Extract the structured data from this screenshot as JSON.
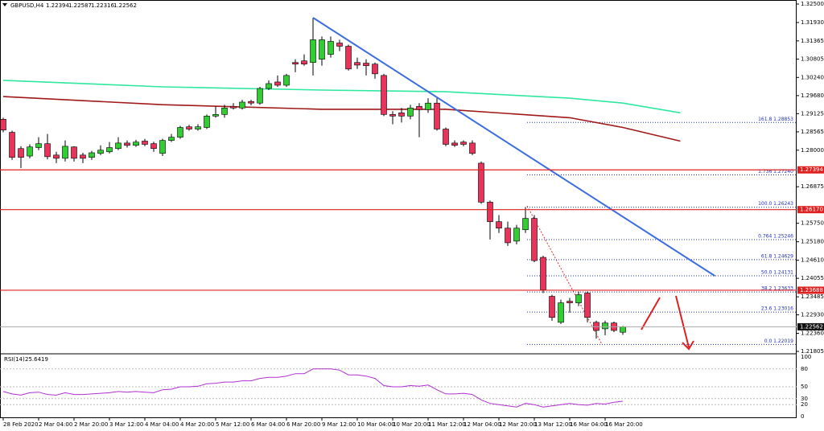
{
  "chart_data": {
    "type": "candlestick",
    "symbol": "GBPUSD,H4",
    "bull_color": "#32cd32",
    "bear_color": "#e8345a",
    "candles": [
      [
        1.2895,
        1.29,
        1.2855,
        1.2862
      ],
      [
        1.2855,
        1.286,
        1.277,
        1.2778
      ],
      [
        1.2805,
        1.2812,
        1.2745,
        1.2778
      ],
      [
        1.2782,
        1.2818,
        1.2775,
        1.281
      ],
      [
        1.2808,
        1.284,
        1.28,
        1.282
      ],
      [
        1.282,
        1.285,
        1.2772,
        1.278
      ],
      [
        1.2785,
        1.2795,
        1.276,
        1.2775
      ],
      [
        1.2775,
        1.283,
        1.2765,
        1.2812
      ],
      [
        1.281,
        1.2812,
        1.2765,
        1.2775
      ],
      [
        1.2785,
        1.2792,
        1.276,
        1.2775
      ],
      [
        1.2778,
        1.2798,
        1.277,
        1.2792
      ],
      [
        1.279,
        1.2815,
        1.2785,
        1.28
      ],
      [
        1.2795,
        1.2825,
        1.279,
        1.2808
      ],
      [
        1.2805,
        1.284,
        1.28,
        1.2822
      ],
      [
        1.2822,
        1.283,
        1.2808,
        1.2815
      ],
      [
        1.2815,
        1.2832,
        1.281,
        1.2825
      ],
      [
        1.2828,
        1.2835,
        1.2812,
        1.2818
      ],
      [
        1.282,
        1.2826,
        1.2795,
        1.2805
      ],
      [
        1.279,
        1.2835,
        1.2782,
        1.283
      ],
      [
        1.283,
        1.285,
        1.2825,
        1.284
      ],
      [
        1.284,
        1.2875,
        1.2835,
        1.287
      ],
      [
        1.2872,
        1.2878,
        1.286,
        1.2865
      ],
      [
        1.2865,
        1.288,
        1.286,
        1.2872
      ],
      [
        1.287,
        1.291,
        1.2865,
        1.2905
      ],
      [
        1.2905,
        1.2935,
        1.29,
        1.291
      ],
      [
        1.291,
        1.294,
        1.29,
        1.293
      ],
      [
        1.2935,
        1.2945,
        1.2925,
        1.293
      ],
      [
        1.293,
        1.2955,
        1.2925,
        1.2948
      ],
      [
        1.295,
        1.2955,
        1.2938,
        1.2945
      ],
      [
        1.2945,
        1.2995,
        1.294,
        1.299
      ],
      [
        1.299,
        1.3015,
        1.2985,
        1.3005
      ],
      [
        1.301,
        1.303,
        1.2995,
        1.3
      ],
      [
        1.3,
        1.3035,
        1.2995,
        1.303
      ],
      [
        1.307,
        1.308,
        1.304,
        1.3065
      ],
      [
        1.3075,
        1.3095,
        1.306,
        1.3065
      ],
      [
        1.307,
        1.3208,
        1.303,
        1.314
      ],
      [
        1.308,
        1.315,
        1.306,
        1.314
      ],
      [
        1.3095,
        1.315,
        1.3085,
        1.3135
      ],
      [
        1.313,
        1.314,
        1.3105,
        1.312
      ],
      [
        1.312,
        1.3125,
        1.3045,
        1.305
      ],
      [
        1.307,
        1.3085,
        1.305,
        1.3062
      ],
      [
        1.3068,
        1.308,
        1.303,
        1.306
      ],
      [
        1.3065,
        1.307,
        1.302,
        1.3035
      ],
      [
        1.303,
        1.3035,
        1.2905,
        1.291
      ],
      [
        1.291,
        1.292,
        1.288,
        1.2905
      ],
      [
        1.2915,
        1.293,
        1.2885,
        1.2905
      ],
      [
        1.2905,
        1.294,
        1.2895,
        1.293
      ],
      [
        1.2935,
        1.2945,
        1.284,
        1.2925
      ],
      [
        1.2925,
        1.296,
        1.2915,
        1.2945
      ],
      [
        1.2945,
        1.296,
        1.286,
        1.2865
      ],
      [
        1.2865,
        1.287,
        1.2812,
        1.2818
      ],
      [
        1.2822,
        1.283,
        1.281,
        1.2815
      ],
      [
        1.2825,
        1.283,
        1.2812,
        1.2818
      ],
      [
        1.2822,
        1.283,
        1.2785,
        1.279
      ],
      [
        1.276,
        1.2765,
        1.2635,
        1.264
      ],
      [
        1.264,
        1.2645,
        1.2525,
        1.258
      ],
      [
        1.258,
        1.26,
        1.2545,
        1.256
      ],
      [
        1.256,
        1.258,
        1.2505,
        1.2515
      ],
      [
        1.252,
        1.257,
        1.251,
        1.256
      ],
      [
        1.2555,
        1.2625,
        1.2545,
        1.259
      ],
      [
        1.259,
        1.26,
        1.2455,
        1.246
      ],
      [
        1.247,
        1.2475,
        1.236,
        1.237
      ],
      [
        1.235,
        1.2355,
        1.2275,
        1.2285
      ],
      [
        1.227,
        1.234,
        1.2265,
        1.233
      ],
      [
        1.2335,
        1.2345,
        1.23,
        1.233
      ],
      [
        1.233,
        1.2365,
        1.232,
        1.2355
      ],
      [
        1.236,
        1.2365,
        1.227,
        1.2285
      ],
      [
        1.227,
        1.2275,
        1.222,
        1.2245
      ],
      [
        1.225,
        1.2275,
        1.223,
        1.2268
      ],
      [
        1.2268,
        1.2272,
        1.224,
        1.2245
      ],
      [
        1.22394,
        1.22587,
        1.22316,
        1.22562
      ]
    ],
    "ylim": [
      1.21805,
      1.325
    ],
    "yticks": [
      {
        "value": 1.325,
        "label": "1.32500"
      },
      {
        "value": 1.3193,
        "label": "1.31930"
      },
      {
        "value": 1.31365,
        "label": "1.31365"
      },
      {
        "value": 1.30805,
        "label": "1.30805"
      },
      {
        "value": 1.3024,
        "label": "1.30240"
      },
      {
        "value": 1.2968,
        "label": "1.29680"
      },
      {
        "value": 1.29125,
        "label": "1.29125"
      },
      {
        "value": 1.28565,
        "label": "1.28565"
      },
      {
        "value": 1.28,
        "label": "1.28000"
      },
      {
        "value": 1.26875,
        "label": "1.26875"
      },
      {
        "value": 1.2575,
        "label": "1.25750"
      },
      {
        "value": 1.2518,
        "label": "1.25180"
      },
      {
        "value": 1.2461,
        "label": "1.24610"
      },
      {
        "value": 1.24055,
        "label": "1.24055"
      },
      {
        "value": 1.23485,
        "label": "1.23485"
      },
      {
        "value": 1.2293,
        "label": "1.22930"
      },
      {
        "value": 1.2236,
        "label": "1.22360"
      },
      {
        "value": 1.21805,
        "label": "1.21805"
      }
    ],
    "xlabels": [
      {
        "value": 0,
        "label": "28 Feb 2020"
      },
      {
        "value": 4,
        "label": "2 Mar 04:00"
      },
      {
        "value": 8,
        "label": "2 Mar 20:00"
      },
      {
        "value": 12,
        "label": "3 Mar 12:00"
      },
      {
        "value": 16,
        "label": "4 Mar 04:00"
      },
      {
        "value": 20,
        "label": "4 Mar 20:00"
      },
      {
        "value": 24,
        "label": "5 Mar 12:00"
      },
      {
        "value": 28,
        "label": "6 Mar 04:00"
      },
      {
        "value": 32,
        "label": "6 Mar 20:00"
      },
      {
        "value": 36,
        "label": "9 Mar 12:00"
      },
      {
        "value": 40,
        "label": "10 Mar 04:00"
      },
      {
        "value": 44,
        "label": "10 Mar 20:00"
      },
      {
        "value": 48,
        "label": "11 Mar 12:00"
      },
      {
        "value": 52,
        "label": "12 Mar 04:00"
      },
      {
        "value": 56,
        "label": "12 Mar 20:00"
      },
      {
        "value": 60,
        "label": "13 Mar 12:00"
      },
      {
        "value": 64,
        "label": "16 Mar 04:00"
      },
      {
        "value": 68,
        "label": "16 Mar 20:00"
      }
    ],
    "moving_averages": [
      {
        "color": "#2ee8a0",
        "x": [
          0,
          18,
          36,
          50,
          64,
          70,
          76.5
        ],
        "values": [
          1.3015,
          1.2995,
          1.2985,
          1.298,
          1.296,
          1.2945,
          1.2915
        ]
      },
      {
        "color": "#a01818",
        "x": [
          0,
          18,
          36,
          50,
          64,
          70,
          76.5
        ],
        "values": [
          1.2965,
          1.294,
          1.2926,
          1.2926,
          1.29,
          1.287,
          1.2828
        ]
      }
    ],
    "trendline": {
      "color": "#3c6ee0",
      "x": [
        35,
        80.4
      ],
      "values": [
        1.3208,
        1.2413
      ]
    },
    "levels": {
      "color": "#e02020",
      "items": [
        {
          "value": 1.27394,
          "label": "1.27394"
        },
        {
          "value": 1.2617,
          "label": "1.26170"
        },
        {
          "value": 1.23688,
          "label": "1.23688"
        }
      ]
    },
    "fib": {
      "color": "#2030c0",
      "items": [
        {
          "value": 1.28853,
          "label": "161.8 1.28853"
        },
        {
          "value": 1.2724,
          "label": "1.736 1.27240"
        },
        {
          "value": 1.26243,
          "label": "100.0 1.26243"
        },
        {
          "value": 1.25246,
          "label": "0.764 1.25246"
        },
        {
          "value": 1.24629,
          "label": "61.8 1.24629"
        },
        {
          "value": 1.24131,
          "label": "50.0 1.24131"
        },
        {
          "value": 1.23633,
          "label": "38.2 1.23633"
        },
        {
          "value": 1.23016,
          "label": "23.6 1.23016"
        },
        {
          "value": 1.22019,
          "label": "0.0 1.22019"
        }
      ]
    },
    "rsi": {
      "title": "RSI(14)",
      "color": "#b030d0",
      "ylim": [
        0,
        100
      ],
      "yticks": [
        100,
        80,
        50,
        30,
        20,
        0
      ],
      "values": [
        42,
        38,
        36,
        40,
        41,
        37,
        36,
        40,
        37,
        37,
        38,
        39,
        40,
        42,
        41,
        42,
        41,
        40,
        45,
        46,
        50,
        50,
        51,
        55,
        56,
        58,
        58,
        60,
        60,
        64,
        66,
        66,
        68,
        72,
        72,
        80,
        80,
        80,
        78,
        70,
        70,
        68,
        64,
        52,
        50,
        50,
        52,
        51,
        53,
        45,
        38,
        38,
        39,
        37,
        28,
        22,
        20,
        18,
        16,
        22,
        20,
        16,
        18,
        20,
        22,
        20,
        19,
        22,
        21,
        24,
        25.6419
      ]
    }
  }
}
